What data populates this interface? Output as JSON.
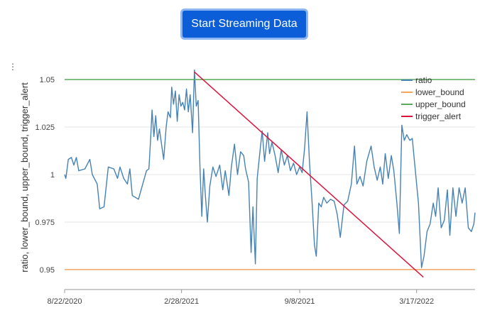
{
  "button": {
    "label": "Start Streaming Data"
  },
  "menu": {
    "icon": "kebab-menu-icon",
    "glyph": "⋮"
  },
  "colors": {
    "ratio": "#4682b4",
    "lower_bound": "#f4a460",
    "upper_bound": "#5aaa5a",
    "trigger_alert": "#dc143c",
    "grid": "#e6e6e6",
    "axis": "#444444"
  },
  "chart_data": {
    "type": "line",
    "title": "",
    "xlabel": "",
    "ylabel": "ratio, lower_bound, upper_bound, trigger_alert",
    "x_ticks": [
      "8/22/2020",
      "2/28/2021",
      "9/8/2021",
      "3/17/2022"
    ],
    "y_ticks": [
      "0.95",
      "0.975",
      "1",
      "1.025",
      "1.05"
    ],
    "x_range": [
      "2020-08-22",
      "2022-06-20"
    ],
    "ylim": [
      0.9395,
      1.0605
    ],
    "grid": true,
    "legend": "top-right",
    "series": [
      {
        "name": "ratio",
        "points": [
          [
            "2020-08-22",
            1.0
          ],
          [
            "2020-08-24",
            0.998
          ],
          [
            "2020-08-26",
            1.003
          ],
          [
            "2020-08-28",
            1.008
          ],
          [
            "2020-09-02",
            1.009
          ],
          [
            "2020-09-06",
            1.005
          ],
          [
            "2020-09-10",
            1.009
          ],
          [
            "2020-09-14",
            1.002
          ],
          [
            "2020-09-24",
            1.003
          ],
          [
            "2020-10-02",
            1.008
          ],
          [
            "2020-10-06",
            1.0
          ],
          [
            "2020-10-14",
            0.995
          ],
          [
            "2020-10-18",
            0.982
          ],
          [
            "2020-10-25",
            0.983
          ],
          [
            "2020-11-01",
            1.004
          ],
          [
            "2020-11-10",
            1.003
          ],
          [
            "2020-11-16",
            0.998
          ],
          [
            "2020-11-20",
            1.004
          ],
          [
            "2020-11-26",
            0.998
          ],
          [
            "2020-12-02",
            0.995
          ],
          [
            "2020-12-06",
            1.003
          ],
          [
            "2020-12-10",
            0.989
          ],
          [
            "2020-12-20",
            0.987
          ],
          [
            "2021-01-02",
            1.002
          ],
          [
            "2021-01-06",
            1.003
          ],
          [
            "2021-01-09",
            1.02
          ],
          [
            "2021-01-11",
            1.034
          ],
          [
            "2021-01-14",
            1.02
          ],
          [
            "2021-01-17",
            1.031
          ],
          [
            "2021-01-20",
            1.018
          ],
          [
            "2021-01-23",
            1.024
          ],
          [
            "2021-01-26",
            1.017
          ],
          [
            "2021-01-30",
            1.008
          ],
          [
            "2021-02-03",
            1.025
          ],
          [
            "2021-02-06",
            1.033
          ],
          [
            "2021-02-10",
            1.03
          ],
          [
            "2021-02-12",
            1.046
          ],
          [
            "2021-02-15",
            1.037
          ],
          [
            "2021-02-18",
            1.044
          ],
          [
            "2021-02-21",
            1.028
          ],
          [
            "2021-02-24",
            1.042
          ],
          [
            "2021-02-27",
            1.036
          ],
          [
            "2021-03-02",
            1.038
          ],
          [
            "2021-03-05",
            1.034
          ],
          [
            "2021-03-08",
            1.045
          ],
          [
            "2021-03-11",
            1.033
          ],
          [
            "2021-03-14",
            1.042
          ],
          [
            "2021-03-18",
            1.022
          ],
          [
            "2021-03-21",
            1.055
          ],
          [
            "2021-03-24",
            1.036
          ],
          [
            "2021-03-27",
            1.039
          ],
          [
            "2021-03-30",
            1.004
          ],
          [
            "2021-04-02",
            0.978
          ],
          [
            "2021-04-05",
            1.003
          ],
          [
            "2021-04-08",
            0.988
          ],
          [
            "2021-04-11",
            0.975
          ],
          [
            "2021-04-15",
            0.994
          ],
          [
            "2021-04-20",
            1.004
          ],
          [
            "2021-04-25",
            0.999
          ],
          [
            "2021-05-01",
            1.005
          ],
          [
            "2021-05-06",
            0.992
          ],
          [
            "2021-05-10",
            1.002
          ],
          [
            "2021-05-16",
            0.989
          ],
          [
            "2021-05-20",
            1.004
          ],
          [
            "2021-05-25",
            1.016
          ],
          [
            "2021-05-30",
            1.0
          ],
          [
            "2021-06-04",
            1.012
          ],
          [
            "2021-06-09",
            1.01
          ],
          [
            "2021-06-12",
            1.003
          ],
          [
            "2021-06-17",
            0.996
          ],
          [
            "2021-06-21",
            0.959
          ],
          [
            "2021-06-24",
            0.983
          ],
          [
            "2021-06-28",
            0.953
          ],
          [
            "2021-07-01",
            0.998
          ],
          [
            "2021-07-06",
            1.014
          ],
          [
            "2021-07-09",
            1.023
          ],
          [
            "2021-07-13",
            1.007
          ],
          [
            "2021-07-18",
            1.022
          ],
          [
            "2021-07-21",
            1.011
          ],
          [
            "2021-07-25",
            1.017
          ],
          [
            "2021-07-30",
            1.01
          ],
          [
            "2021-08-04",
            1.001
          ],
          [
            "2021-08-09",
            1.013
          ],
          [
            "2021-08-14",
            1.005
          ],
          [
            "2021-08-19",
            1.01
          ],
          [
            "2021-08-24",
            1.002
          ],
          [
            "2021-08-29",
            1.006
          ],
          [
            "2021-09-03",
            1.0
          ],
          [
            "2021-09-08",
            1.004
          ],
          [
            "2021-09-12",
            1.001
          ],
          [
            "2021-09-16",
            1.014
          ],
          [
            "2021-09-20",
            1.033
          ],
          [
            "2021-09-24",
            1.006
          ],
          [
            "2021-09-28",
            0.986
          ],
          [
            "2021-10-02",
            0.963
          ],
          [
            "2021-10-05",
            0.957
          ],
          [
            "2021-10-09",
            0.985
          ],
          [
            "2021-10-13",
            0.983
          ],
          [
            "2021-10-17",
            0.988
          ],
          [
            "2021-10-22",
            0.985
          ],
          [
            "2021-10-28",
            0.987
          ],
          [
            "2021-11-03",
            0.986
          ],
          [
            "2021-11-08",
            0.979
          ],
          [
            "2021-11-13",
            0.967
          ],
          [
            "2021-11-19",
            0.984
          ],
          [
            "2021-11-25",
            0.986
          ],
          [
            "2021-12-01",
            0.995
          ],
          [
            "2021-12-06",
            1.015
          ],
          [
            "2021-12-10",
            0.995
          ],
          [
            "2021-12-15",
            0.999
          ],
          [
            "2021-12-20",
            0.994
          ],
          [
            "2021-12-26",
            1.007
          ],
          [
            "2022-01-02",
            1.015
          ],
          [
            "2022-01-07",
            1.004
          ],
          [
            "2022-01-12",
            0.997
          ],
          [
            "2022-01-17",
            1.004
          ],
          [
            "2022-01-21",
            0.995
          ],
          [
            "2022-01-25",
            1.011
          ],
          [
            "2022-01-30",
            0.998
          ],
          [
            "2022-02-04",
            1.01
          ],
          [
            "2022-02-08",
            1.002
          ],
          [
            "2022-02-13",
            0.985
          ],
          [
            "2022-02-17",
            0.969
          ],
          [
            "2022-02-21",
            1.026
          ],
          [
            "2022-02-25",
            1.018
          ],
          [
            "2022-03-01",
            1.021
          ],
          [
            "2022-03-06",
            1.018
          ],
          [
            "2022-03-10",
            1.019
          ],
          [
            "2022-03-15",
            1.002
          ],
          [
            "2022-03-20",
            0.985
          ],
          [
            "2022-03-25",
            0.951
          ],
          [
            "2022-03-29",
            0.957
          ],
          [
            "2022-04-03",
            0.97
          ],
          [
            "2022-04-08",
            0.974
          ],
          [
            "2022-04-13",
            0.985
          ],
          [
            "2022-04-17",
            0.978
          ],
          [
            "2022-04-21",
            0.993
          ],
          [
            "2022-04-26",
            0.972
          ],
          [
            "2022-05-01",
            0.976
          ],
          [
            "2022-05-06",
            0.992
          ],
          [
            "2022-05-10",
            0.968
          ],
          [
            "2022-05-15",
            0.993
          ],
          [
            "2022-05-20",
            0.978
          ],
          [
            "2022-05-25",
            0.993
          ],
          [
            "2022-05-30",
            0.985
          ],
          [
            "2022-06-04",
            0.993
          ],
          [
            "2022-06-09",
            0.972
          ],
          [
            "2022-06-14",
            0.97
          ],
          [
            "2022-06-18",
            0.974
          ],
          [
            "2022-06-20",
            0.98
          ]
        ]
      },
      {
        "name": "lower_bound",
        "points": [
          [
            "2020-08-22",
            0.95
          ],
          [
            "2022-06-20",
            0.95
          ]
        ]
      },
      {
        "name": "upper_bound",
        "points": [
          [
            "2020-08-22",
            1.05
          ],
          [
            "2022-06-20",
            1.05
          ]
        ]
      },
      {
        "name": "trigger_alert",
        "points": [
          [
            "2021-03-21",
            1.054
          ],
          [
            "2022-03-28",
            0.946
          ]
        ]
      }
    ]
  }
}
